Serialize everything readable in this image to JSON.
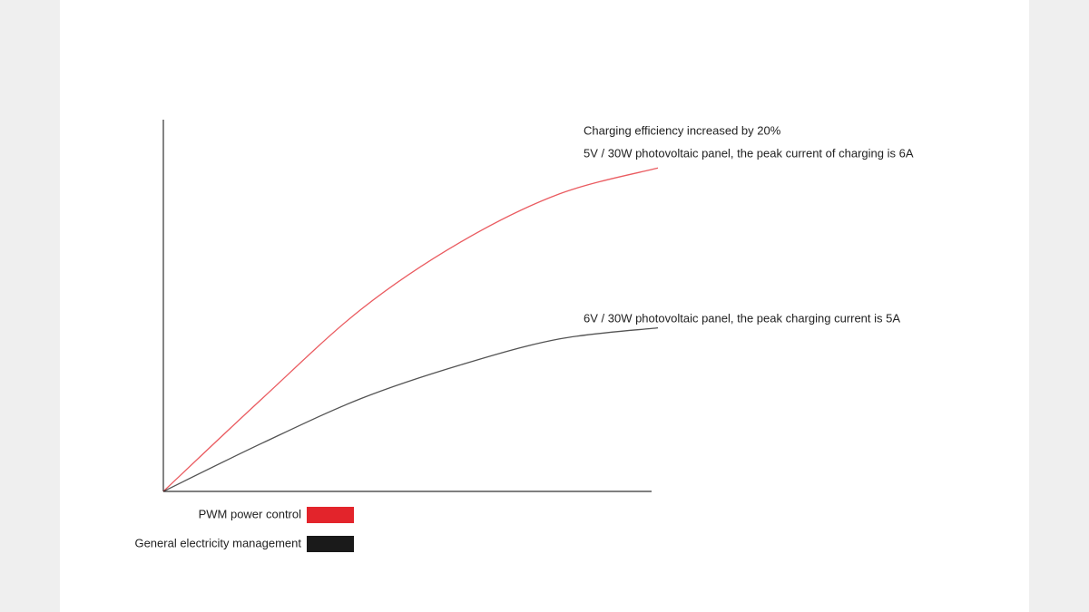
{
  "chart_data": {
    "type": "line",
    "x": [
      0,
      20,
      40,
      60,
      80,
      100
    ],
    "xlim": [
      0,
      100
    ],
    "ylim": [
      0,
      100
    ],
    "series": [
      {
        "name": "PWM power control",
        "color": "#e3242b",
        "values": [
          0,
          25,
          49,
          67,
          80,
          87
        ]
      },
      {
        "name": "General electricity management",
        "color": "#1a1a1a",
        "values": [
          0,
          13,
          25,
          34,
          41,
          44
        ]
      }
    ],
    "annotations": [
      "Charging efficiency increased by 20%",
      "5V / 30W photovoltaic panel, the peak current of charging is 6A",
      "6V / 30W photovoltaic panel, the peak charging current is 5A"
    ]
  }
}
